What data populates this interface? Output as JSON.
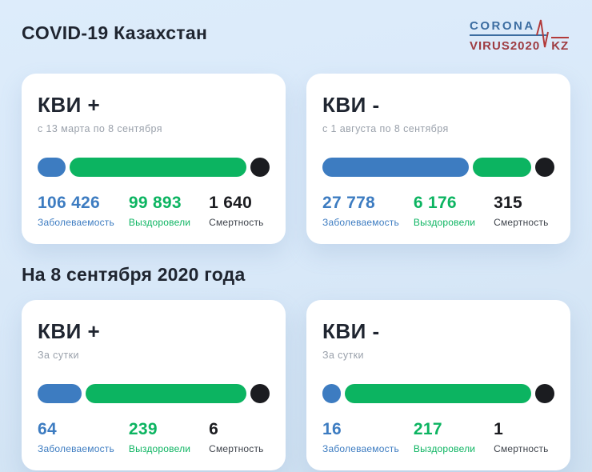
{
  "header": {
    "title": "COVID-19 Казахстан",
    "logo": {
      "line1": "CORONA",
      "line2": "VIRUS2020",
      "suffix": "KZ"
    }
  },
  "section2": {
    "title": "На 8 сентября 2020 года"
  },
  "colors": {
    "background": "#d9e8f8",
    "card": "#ffffff",
    "blue": "#3d7cc1",
    "green": "#0cb461",
    "black": "#1b1c20",
    "logo_blue": "#3c6da1",
    "logo_red": "#9e3b41"
  },
  "cards": [
    {
      "title": "КВИ +",
      "subtitle": "с 13 марта по 8 сентября",
      "bar": {
        "blue_pct": 12
      },
      "stats": [
        {
          "value": "106 426",
          "label": "Заболеваемость"
        },
        {
          "value": "99 893",
          "label": "Выздоровели"
        },
        {
          "value": "1 640",
          "label": "Смертность"
        }
      ]
    },
    {
      "title": "КВИ -",
      "subtitle": "с 1 августа по 8 сентября",
      "bar": {
        "blue_pct": 63
      },
      "stats": [
        {
          "value": "27 778",
          "label": "Заболеваемость"
        },
        {
          "value": "6 176",
          "label": "Выздоровели"
        },
        {
          "value": "315",
          "label": "Смертность"
        }
      ]
    },
    {
      "title": "КВИ +",
      "subtitle": "За сутки",
      "bar": {
        "blue_pct": 19
      },
      "stats": [
        {
          "value": "64",
          "label": "Заболеваемость"
        },
        {
          "value": "239",
          "label": "Выздоровели"
        },
        {
          "value": "6",
          "label": "Смертность"
        }
      ]
    },
    {
      "title": "КВИ -",
      "subtitle": "За сутки",
      "bar": {
        "blue_pct": 8
      },
      "stats": [
        {
          "value": "16",
          "label": "Заболеваемость"
        },
        {
          "value": "217",
          "label": "Выздоровели"
        },
        {
          "value": "1",
          "label": "Смертность"
        }
      ]
    }
  ],
  "chart_data": [
    {
      "type": "bar",
      "title": "КВИ + (с 13 марта по 8 сентября)",
      "categories": [
        "Заболеваемость",
        "Выздоровели",
        "Смертность"
      ],
      "values": [
        106426,
        99893,
        1640
      ],
      "colors": [
        "#3d7cc1",
        "#0cb461",
        "#1b1c20"
      ],
      "legend_position": "below-bar",
      "grid": false
    },
    {
      "type": "bar",
      "title": "КВИ - (с 1 августа по 8 сентября)",
      "categories": [
        "Заболеваемость",
        "Выздоровели",
        "Смертность"
      ],
      "values": [
        27778,
        6176,
        315
      ],
      "colors": [
        "#3d7cc1",
        "#0cb461",
        "#1b1c20"
      ],
      "legend_position": "below-bar",
      "grid": false
    },
    {
      "type": "bar",
      "title": "КВИ + (За сутки, на 8 сентября 2020 года)",
      "categories": [
        "Заболеваемость",
        "Выздоровели",
        "Смертность"
      ],
      "values": [
        64,
        239,
        6
      ],
      "colors": [
        "#3d7cc1",
        "#0cb461",
        "#1b1c20"
      ],
      "legend_position": "below-bar",
      "grid": false
    },
    {
      "type": "bar",
      "title": "КВИ - (За сутки, на 8 сентября 2020 года)",
      "categories": [
        "Заболеваемость",
        "Выздоровели",
        "Смертность"
      ],
      "values": [
        16,
        217,
        1
      ],
      "colors": [
        "#3d7cc1",
        "#0cb461",
        "#1b1c20"
      ],
      "legend_position": "below-bar",
      "grid": false
    }
  ]
}
